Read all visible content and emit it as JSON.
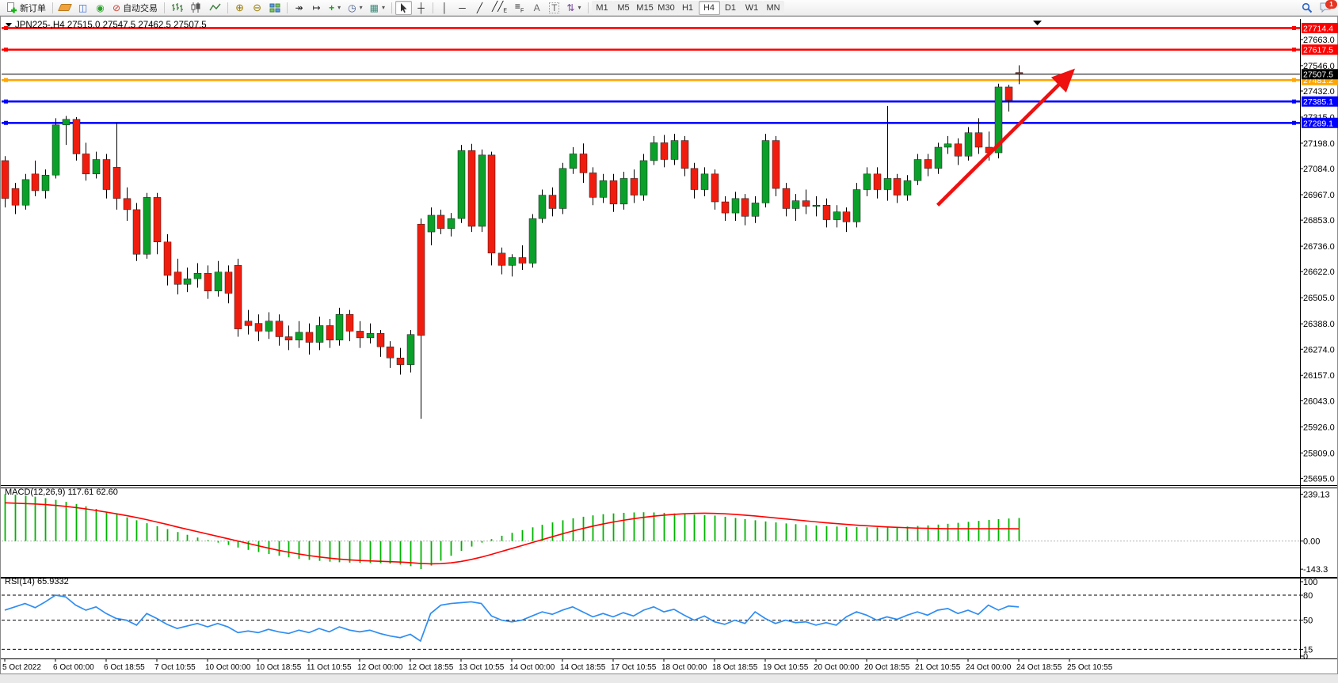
{
  "toolbar": {
    "new_order_label": "新订单",
    "auto_trading_label": "自动交易",
    "text_tool_label": "A",
    "label_tool_label": "T",
    "channel_tool_label": "E",
    "fibo_tool_label": "F",
    "timeframes": [
      "M1",
      "M5",
      "M15",
      "M30",
      "H1",
      "H4",
      "D1",
      "W1",
      "MN"
    ],
    "active_timeframe": "H4",
    "notification_badge": "1"
  },
  "chart_header": {
    "title": "JPN225-,H4",
    "ohlc_text": "27515.0 27547.5 27462.5 27507.5"
  },
  "chart_data": [
    {
      "type": "candlestick",
      "title": "JPN225-,H4",
      "timeframe": "H4",
      "ohlc_current": {
        "open": 27515.0,
        "high": 27547.5,
        "low": 27462.5,
        "close": 27507.5
      },
      "current_price": 27507.5,
      "ylim": [
        25668,
        27755
      ],
      "y_ticks": [
        27663.0,
        27546.0,
        27432.0,
        27315.0,
        27198.0,
        27084.0,
        26967.0,
        26853.0,
        26736.0,
        26622.0,
        26505.0,
        26388.0,
        26274.0,
        26157.0,
        26043.0,
        25926.0,
        25809.0,
        25695.0
      ],
      "hlines": [
        {
          "price": 27714.4,
          "color": "#ff0000"
        },
        {
          "price": 27617.5,
          "color": "#ff0000"
        },
        {
          "price": 27481.2,
          "color": "#ffa500"
        },
        {
          "price": 27385.1,
          "color": "#0000ff"
        },
        {
          "price": 27289.1,
          "color": "#0000ff"
        }
      ],
      "x_labels": [
        {
          "i": 0,
          "label": "5 Oct 2022"
        },
        {
          "i": 5,
          "label": "6 Oct 00:00"
        },
        {
          "i": 10,
          "label": "6 Oct 18:55"
        },
        {
          "i": 15,
          "label": "7 Oct 10:55"
        },
        {
          "i": 20,
          "label": "10 Oct 00:00"
        },
        {
          "i": 25,
          "label": "10 Oct 18:55"
        },
        {
          "i": 30,
          "label": "11 Oct 10:55"
        },
        {
          "i": 35,
          "label": "12 Oct 00:00"
        },
        {
          "i": 40,
          "label": "12 Oct 18:55"
        },
        {
          "i": 45,
          "label": "13 Oct 10:55"
        },
        {
          "i": 50,
          "label": "14 Oct 00:00"
        },
        {
          "i": 55,
          "label": "14 Oct 18:55"
        },
        {
          "i": 60,
          "label": "17 Oct 10:55"
        },
        {
          "i": 65,
          "label": "18 Oct 00:00"
        },
        {
          "i": 70,
          "label": "18 Oct 18:55"
        },
        {
          "i": 75,
          "label": "19 Oct 10:55"
        },
        {
          "i": 80,
          "label": "20 Oct 00:00"
        },
        {
          "i": 85,
          "label": "20 Oct 18:55"
        },
        {
          "i": 90,
          "label": "21 Oct 10:55"
        },
        {
          "i": 95,
          "label": "24 Oct 00:00"
        },
        {
          "i": 100,
          "label": "24 Oct 18:55"
        },
        {
          "i": 105,
          "label": "25 Oct 10:55"
        }
      ],
      "candles": [
        [
          27120,
          27140,
          26910,
          26950
        ],
        [
          26995,
          27020,
          26880,
          26920
        ],
        [
          26920,
          27060,
          26900,
          27035
        ],
        [
          27060,
          27120,
          26960,
          26985
        ],
        [
          26985,
          27080,
          26950,
          27055
        ],
        [
          27055,
          27310,
          27040,
          27280
        ],
        [
          27280,
          27320,
          27190,
          27305
        ],
        [
          27305,
          27315,
          27120,
          27150
        ],
        [
          27150,
          27200,
          27030,
          27060
        ],
        [
          27060,
          27160,
          27040,
          27125
        ],
        [
          27125,
          27150,
          26950,
          26990
        ],
        [
          27090,
          27290,
          26900,
          26950
        ],
        [
          26950,
          27000,
          26850,
          26900
        ],
        [
          26900,
          26930,
          26670,
          26700
        ],
        [
          26700,
          26975,
          26680,
          26955
        ],
        [
          26955,
          26975,
          26700,
          26755
        ],
        [
          26755,
          26790,
          26560,
          26605
        ],
        [
          26620,
          26680,
          26520,
          26565
        ],
        [
          26565,
          26640,
          26530,
          26590
        ],
        [
          26590,
          26660,
          26550,
          26615
        ],
        [
          26615,
          26650,
          26500,
          26535
        ],
        [
          26535,
          26670,
          26510,
          26620
        ],
        [
          26620,
          26650,
          26480,
          26525
        ],
        [
          26650,
          26680,
          26330,
          26365
        ],
        [
          26400,
          26450,
          26340,
          26380
        ],
        [
          26390,
          26430,
          26310,
          26355
        ],
        [
          26355,
          26440,
          26320,
          26400
        ],
        [
          26400,
          26430,
          26290,
          26330
        ],
        [
          26330,
          26380,
          26270,
          26315
        ],
        [
          26315,
          26400,
          26280,
          26350
        ],
        [
          26350,
          26390,
          26250,
          26305
        ],
        [
          26305,
          26420,
          26270,
          26380
        ],
        [
          26380,
          26410,
          26280,
          26315
        ],
        [
          26315,
          26460,
          26290,
          26430
        ],
        [
          26430,
          26450,
          26310,
          26355
        ],
        [
          26355,
          26400,
          26280,
          26325
        ],
        [
          26325,
          26390,
          26300,
          26345
        ],
        [
          26345,
          26360,
          26240,
          26285
        ],
        [
          26285,
          26310,
          26190,
          26235
        ],
        [
          26235,
          26280,
          26160,
          26205
        ],
        [
          26205,
          26360,
          26170,
          26340
        ],
        [
          26835,
          26860,
          25962,
          26336
        ],
        [
          26800,
          26910,
          26740,
          26875
        ],
        [
          26875,
          26900,
          26790,
          26815
        ],
        [
          26815,
          26885,
          26780,
          26860
        ],
        [
          26860,
          27190,
          26840,
          27165
        ],
        [
          27165,
          27195,
          26800,
          26825
        ],
        [
          26825,
          27170,
          26800,
          27145
        ],
        [
          27145,
          27160,
          26650,
          26705
        ],
        [
          26705,
          26730,
          26610,
          26650
        ],
        [
          26650,
          26700,
          26600,
          26685
        ],
        [
          26685,
          26740,
          26630,
          26660
        ],
        [
          26660,
          26880,
          26640,
          26860
        ],
        [
          26860,
          26990,
          26840,
          26965
        ],
        [
          26965,
          27000,
          26870,
          26905
        ],
        [
          26905,
          27110,
          26880,
          27085
        ],
        [
          27085,
          27180,
          27060,
          27150
        ],
        [
          27150,
          27197,
          27020,
          27065
        ],
        [
          27065,
          27090,
          26920,
          26955
        ],
        [
          26955,
          27060,
          26930,
          27030
        ],
        [
          27030,
          27060,
          26890,
          26925
        ],
        [
          26925,
          27070,
          26900,
          27040
        ],
        [
          27040,
          27080,
          26930,
          26965
        ],
        [
          26965,
          27150,
          26940,
          27120
        ],
        [
          27120,
          27230,
          27100,
          27200
        ],
        [
          27200,
          27235,
          27090,
          27125
        ],
        [
          27125,
          27240,
          27100,
          27210
        ],
        [
          27210,
          27230,
          27050,
          27085
        ],
        [
          27085,
          27110,
          26950,
          26990
        ],
        [
          26990,
          27090,
          26960,
          27060
        ],
        [
          27060,
          27080,
          26900,
          26935
        ],
        [
          26935,
          26960,
          26850,
          26885
        ],
        [
          26885,
          26980,
          26850,
          26950
        ],
        [
          26950,
          26970,
          26830,
          26870
        ],
        [
          26870,
          26960,
          26840,
          26930
        ],
        [
          26930,
          27240,
          26910,
          27210
        ],
        [
          27210,
          27230,
          26960,
          26995
        ],
        [
          26995,
          27020,
          26870,
          26905
        ],
        [
          26905,
          26970,
          26850,
          26940
        ],
        [
          26940,
          26990,
          26880,
          26915
        ],
        [
          26915,
          26960,
          26870,
          26920
        ],
        [
          26920,
          26950,
          26820,
          26855
        ],
        [
          26855,
          26920,
          26820,
          26890
        ],
        [
          26890,
          26910,
          26800,
          26845
        ],
        [
          26845,
          27020,
          26820,
          26990
        ],
        [
          26990,
          27090,
          26960,
          27060
        ],
        [
          27060,
          27090,
          26950,
          26990
        ],
        [
          26990,
          27365,
          26940,
          27040
        ],
        [
          27040,
          27060,
          26930,
          26965
        ],
        [
          26965,
          27055,
          26940,
          27030
        ],
        [
          27030,
          27150,
          27010,
          27125
        ],
        [
          27125,
          27150,
          27050,
          27085
        ],
        [
          27085,
          27200,
          27060,
          27180
        ],
        [
          27180,
          27230,
          27150,
          27195
        ],
        [
          27195,
          27220,
          27100,
          27140
        ],
        [
          27140,
          27270,
          27120,
          27245
        ],
        [
          27245,
          27310,
          27150,
          27180
        ],
        [
          27180,
          27250,
          27120,
          27155
        ],
        [
          27155,
          27465,
          27130,
          27450
        ],
        [
          27450,
          27460,
          27340,
          27390
        ],
        [
          27515,
          27547.5,
          27462.5,
          27507.5
        ]
      ],
      "colors": {
        "up": "#0aa02a",
        "down": "#f01d0e",
        "wick": "#000000",
        "current_line": "#000000"
      },
      "annotation_arrow": {
        "from_i": 92,
        "from_price": 26920,
        "to_i": 105.6,
        "to_price": 27528,
        "color": "#ef1010"
      }
    },
    {
      "type": "bar",
      "name": "MACD(12,26,9)",
      "values_label": "117.61 62.60",
      "ylim": [
        -179,
        269
      ],
      "y_ticks": [
        "239.13",
        "0.00",
        "-143.3"
      ],
      "y_tick_values": [
        239.13,
        0.0,
        -143.3
      ],
      "histogram": [
        239,
        236,
        232,
        226,
        219,
        210,
        200,
        189,
        177,
        164,
        150,
        136,
        121,
        106,
        91,
        76,
        61,
        46,
        32,
        18,
        5,
        -8,
        -20,
        -33,
        -45,
        -56,
        -66,
        -75,
        -83,
        -90,
        -96,
        -101,
        -105,
        -108,
        -110,
        -111,
        -112,
        -113,
        -115,
        -120,
        -128,
        -143,
        -125,
        -100,
        -75,
        -50,
        -28,
        -8,
        10,
        27,
        42,
        56,
        70,
        83,
        95,
        106,
        116,
        124,
        131,
        137,
        141,
        144,
        146,
        147,
        146,
        144,
        141,
        138,
        135,
        132,
        130,
        124,
        118,
        112,
        106,
        100,
        95,
        90,
        86,
        82,
        79,
        76,
        74,
        72,
        71,
        70,
        70,
        71,
        72,
        74,
        77,
        80,
        84,
        88,
        93,
        98,
        103,
        108,
        112,
        115,
        117.61
      ],
      "signal": [
        195,
        193,
        191,
        189,
        186,
        182,
        177,
        171,
        164,
        156,
        148,
        139,
        130,
        120,
        109,
        97,
        85,
        72,
        60,
        48,
        36,
        24,
        12,
        0,
        -12,
        -24,
        -36,
        -47,
        -57,
        -66,
        -74,
        -81,
        -87,
        -92,
        -96,
        -99,
        -101,
        -103,
        -105,
        -107,
        -110,
        -114,
        -116,
        -115,
        -111,
        -104,
        -94,
        -82,
        -68,
        -53,
        -38,
        -23,
        -8,
        7,
        22,
        37,
        51,
        64,
        76,
        87,
        97,
        106,
        114,
        121,
        127,
        132,
        136,
        139,
        141,
        142,
        141,
        139,
        136,
        132,
        128,
        123,
        118,
        113,
        108,
        103,
        98,
        93,
        89,
        85,
        81,
        78,
        75,
        72,
        70,
        68,
        66,
        65,
        64,
        63,
        63,
        63,
        63,
        63,
        63,
        63,
        62.6
      ],
      "colors": {
        "histogram": "#00b400",
        "signal": "#ff0000",
        "zero_line": "#b4b4b4"
      }
    },
    {
      "type": "line",
      "name": "RSI(14)",
      "value_label": "65.9332",
      "ylim": [
        4,
        100
      ],
      "y_ticks": [
        100,
        80,
        50,
        15,
        0
      ],
      "levels": [
        80,
        50,
        15
      ],
      "values": [
        62,
        66,
        70,
        65,
        72,
        80,
        78,
        68,
        62,
        66,
        58,
        52,
        50,
        44,
        58,
        52,
        45,
        40,
        43,
        46,
        42,
        46,
        42,
        35,
        37,
        35,
        39,
        36,
        34,
        38,
        35,
        40,
        36,
        42,
        38,
        36,
        38,
        34,
        31,
        29,
        33,
        25,
        58,
        68,
        70,
        71,
        72,
        70,
        55,
        50,
        48,
        50,
        55,
        60,
        57,
        62,
        66,
        60,
        54,
        58,
        54,
        59,
        55,
        62,
        66,
        60,
        63,
        56,
        50,
        55,
        48,
        45,
        50,
        46,
        60,
        52,
        46,
        50,
        47,
        48,
        44,
        47,
        44,
        54,
        60,
        56,
        50,
        54,
        51,
        56,
        60,
        56,
        62,
        64,
        58,
        62,
        57,
        68,
        62,
        67,
        65.9332
      ],
      "color": "#2f8df2"
    }
  ]
}
